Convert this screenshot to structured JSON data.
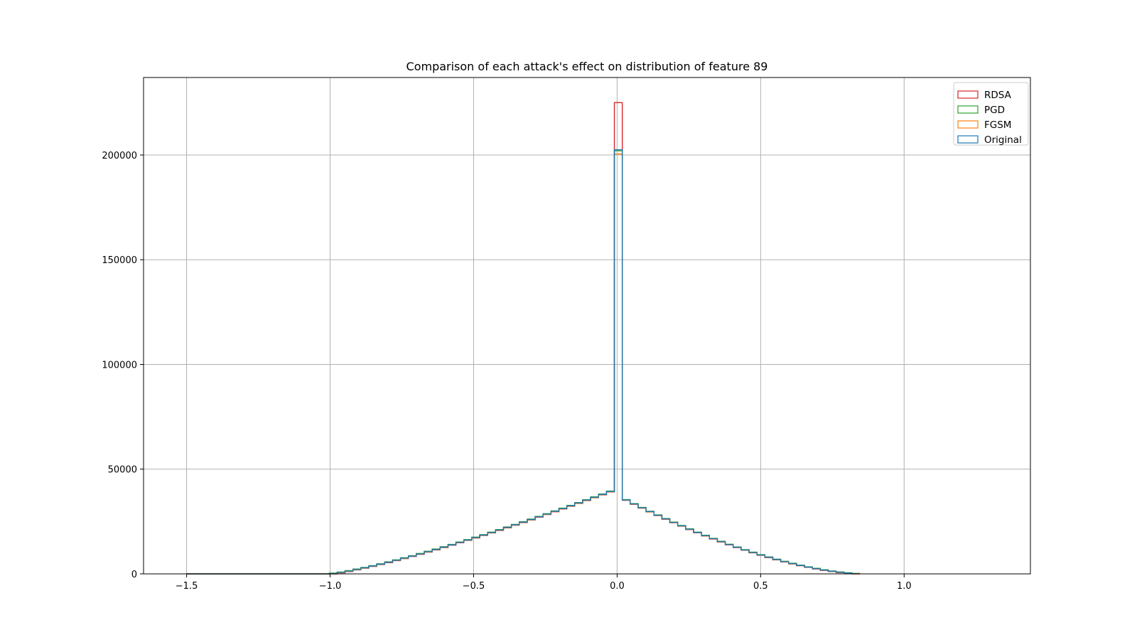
{
  "chart_data": {
    "type": "histogram",
    "title": "Comparison of each attack's effect on distribution of feature 89",
    "xlabel": "",
    "ylabel": "",
    "xlim": [
      -1.65,
      1.44
    ],
    "ylim": [
      0,
      237000
    ],
    "grid": true,
    "legend_position": "top-right",
    "x_ticks": [
      -1.5,
      -1.0,
      -0.5,
      0.0,
      0.5,
      1.0
    ],
    "x_tick_labels": [
      "−1.5",
      "−1.0",
      "−0.5",
      "0.0",
      "0.5",
      "1.0"
    ],
    "y_ticks": [
      0,
      50000,
      100000,
      150000,
      200000
    ],
    "y_tick_labels": [
      "0",
      "50000",
      "100000",
      "150000",
      "200000"
    ],
    "bin_start": -1.5,
    "bin_width": 0.0276,
    "base_counts": [
      0,
      0,
      0,
      0,
      0,
      0,
      0,
      0,
      0,
      0,
      0,
      0,
      0,
      0,
      0,
      0,
      0,
      0,
      0,
      0,
      0,
      0,
      0,
      0,
      0,
      0,
      0,
      0,
      0,
      0,
      0,
      0,
      0,
      0,
      0,
      0,
      0,
      0,
      0,
      0,
      0,
      0,
      0,
      0,
      0,
      0,
      0,
      0,
      0,
      0,
      0,
      0,
      0,
      0,
      0,
      0,
      0,
      0,
      0,
      0,
      0,
      0,
      0,
      0,
      0,
      0,
      0,
      0,
      0,
      0,
      0,
      0,
      0,
      0,
      0,
      0,
      0,
      0,
      0,
      0,
      0,
      0,
      0,
      0,
      0,
      0,
      0,
      0,
      0,
      0,
      0,
      0,
      0,
      0,
      0,
      0,
      0,
      0,
      0,
      0,
      0,
      0,
      0,
      0,
      0,
      0,
      0,
      0,
      0,
      0,
      0
    ],
    "series": [
      {
        "name": "RDSA",
        "color": "#d62728",
        "peak": 225000,
        "shift": -0.4
      },
      {
        "name": "PGD",
        "color": "#2ca02c",
        "peak": 202000,
        "shift": 0.4
      },
      {
        "name": "FGSM",
        "color": "#ff7f0e",
        "peak": 200500,
        "shift": -0.2
      },
      {
        "name": "Original",
        "color": "#1f77b4",
        "peak": 202500,
        "shift": 0
      }
    ]
  }
}
